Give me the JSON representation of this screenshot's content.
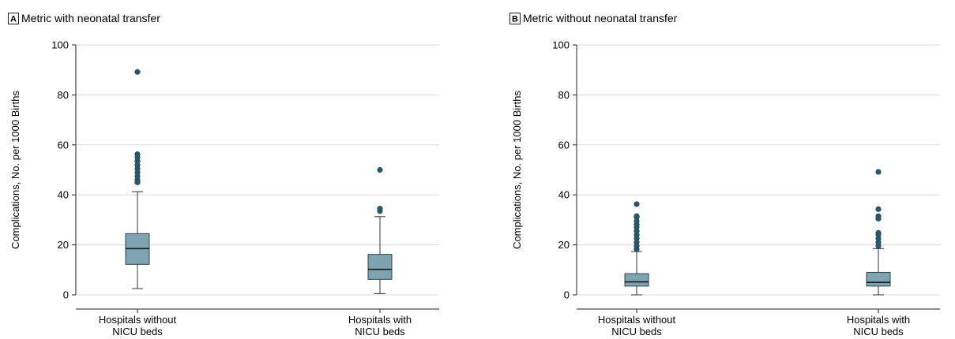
{
  "chart_data": [
    {
      "type": "box",
      "panel_letter": "A",
      "title": "Metric with neonatal transfer",
      "ylabel": "Complications, No. per 1000 Births",
      "ylim": [
        0,
        100
      ],
      "yticks": [
        0,
        20,
        40,
        60,
        80,
        100
      ],
      "grid": true,
      "categories": [
        [
          "Hospitals without",
          "NICU beds"
        ],
        [
          "Hospitals with",
          "NICU beds"
        ]
      ],
      "boxes": [
        {
          "whisker_low": 2.5,
          "q1": 12.2,
          "median": 18.5,
          "q3": 24.5,
          "whisker_high": 41.3,
          "outliers": [
            45,
            46,
            47.5,
            49,
            50.5,
            52,
            53.5,
            55,
            56.3,
            89.2
          ]
        },
        {
          "whisker_low": 0.5,
          "q1": 6.2,
          "median": 10.2,
          "q3": 16.2,
          "whisker_high": 31.3,
          "outliers": [
            33.5,
            34.5,
            50
          ]
        }
      ],
      "colors": {
        "box_fill": "#7fa3b0",
        "box_stroke": "#2b4752",
        "outlier": "#2b5665",
        "grid": "#d8d8d8"
      }
    },
    {
      "type": "box",
      "panel_letter": "B",
      "title": "Metric without neonatal transfer",
      "ylabel": "Complications, No. per 1000 Births",
      "ylim": [
        0,
        100
      ],
      "yticks": [
        0,
        20,
        40,
        60,
        80,
        100
      ],
      "grid": true,
      "categories": [
        [
          "Hospitals without",
          "NICU beds"
        ],
        [
          "Hospitals with",
          "NICU beds"
        ]
      ],
      "boxes": [
        {
          "whisker_low": 0,
          "q1": 3.5,
          "median": 5.2,
          "q3": 8.5,
          "whisker_high": 17.3,
          "outliers": [
            18.2,
            19.5,
            21,
            22.5,
            24,
            25.5,
            27,
            28.2,
            29.5,
            31,
            31.5,
            36.3
          ]
        },
        {
          "whisker_low": 0,
          "q1": 3.5,
          "median": 5.0,
          "q3": 9.0,
          "whisker_high": 18.5,
          "outliers": [
            19.5,
            21,
            22.5,
            24,
            24.8,
            30.5,
            31.5,
            34.3,
            49.2
          ]
        }
      ],
      "colors": {
        "box_fill": "#7fa3b0",
        "box_stroke": "#2b4752",
        "outlier": "#2b5665",
        "grid": "#d8d8d8"
      }
    }
  ]
}
